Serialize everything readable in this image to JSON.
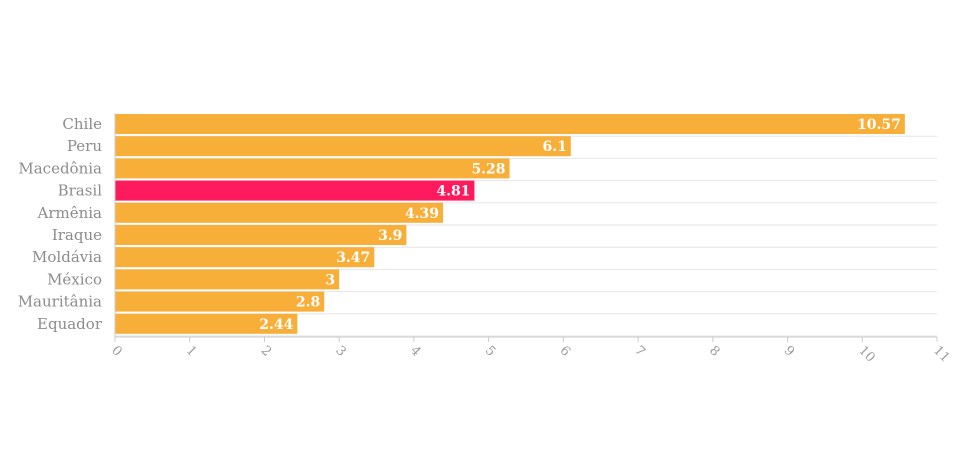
{
  "chart_data": {
    "type": "bar",
    "orientation": "horizontal",
    "categories": [
      "Chile",
      "Peru",
      "Macedônia",
      "Brasil",
      "Armênia",
      "Iraque",
      "Moldávia",
      "México",
      "Mauritânia",
      "Equador"
    ],
    "values": [
      10.57,
      6.1,
      5.28,
      4.81,
      4.39,
      3.9,
      3.47,
      3,
      2.8,
      2.44
    ],
    "value_labels": [
      "10.57",
      "6.1",
      "5.28",
      "4.81",
      "4.39",
      "3.9",
      "3.47",
      "3",
      "2.8",
      "2.44"
    ],
    "highlight_category": "Brasil",
    "xlim": [
      0,
      11
    ],
    "x_ticks": [
      "0",
      "1",
      "2",
      "3",
      "4",
      "5",
      "6",
      "7",
      "8",
      "9",
      "10",
      "11"
    ],
    "grid": true,
    "legend": "none",
    "title": "",
    "xlabel": "",
    "ylabel": ""
  },
  "colors": {
    "bar": "#F7AF3A",
    "highlight": "#FF1A5E",
    "category_text": "#8c8c8c",
    "value_text": "#ffffff",
    "grid": "#e6e6e6"
  }
}
